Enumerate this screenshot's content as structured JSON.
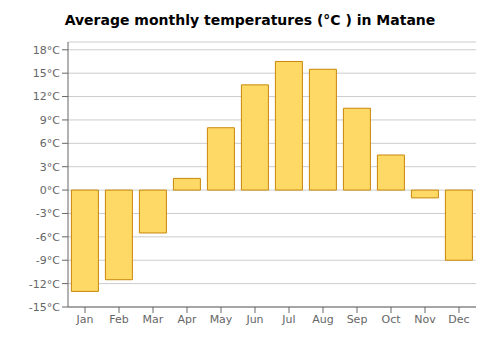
{
  "chart_data": {
    "type": "bar",
    "title": "Average monthly temperatures (°C ) in Matane",
    "categories": [
      "Jan",
      "Feb",
      "Mar",
      "Apr",
      "May",
      "Jun",
      "Jul",
      "Aug",
      "Sep",
      "Oct",
      "Nov",
      "Dec"
    ],
    "values": [
      -13,
      -11.5,
      -5.5,
      1.5,
      8,
      13.5,
      16.5,
      15.5,
      10.5,
      4.5,
      -1,
      -9
    ],
    "color": "#FFD966",
    "ylim": [
      -15,
      19
    ],
    "yticks": [
      {
        "value": -15,
        "label": "-15°C"
      },
      {
        "value": -12,
        "label": "-12°C"
      },
      {
        "value": -9,
        "label": "-9°C"
      },
      {
        "value": -6,
        "label": "-6°C"
      },
      {
        "value": -3,
        "label": "-3°C"
      },
      {
        "value": 0,
        "label": "0°C"
      },
      {
        "value": 3,
        "label": "3°C"
      },
      {
        "value": 6,
        "label": "6°C"
      },
      {
        "value": 9,
        "label": "9°C"
      },
      {
        "value": 12,
        "label": "12°C"
      },
      {
        "value": 15,
        "label": "15°C"
      },
      {
        "value": 18,
        "label": "18°C"
      }
    ],
    "grid": true
  }
}
